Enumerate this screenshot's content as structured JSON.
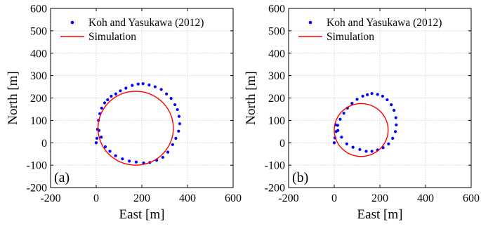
{
  "chart_data": [
    {
      "type": "scatter",
      "panel_label": "(a)",
      "xlabel": "East [m]",
      "ylabel": "North [m]",
      "xlim": [
        -200,
        600
      ],
      "ylim": [
        -200,
        600
      ],
      "xticks": [
        -200,
        0,
        200,
        400,
        600
      ],
      "yticks": [
        -200,
        -100,
        0,
        100,
        200,
        300,
        400,
        500,
        600
      ],
      "grid": true,
      "legend_position": "top-right",
      "series": [
        {
          "name": "Koh and Yasukawa (2012)",
          "kind": "markers",
          "color": "#0000ff",
          "x": [
            0,
            3,
            6,
            10,
            16,
            24,
            37,
            50,
            66,
            86,
            106,
            130,
            158,
            184,
            205,
            232,
            258,
            285,
            308,
            328,
            345,
            356,
            363,
            366,
            361,
            349,
            335,
            314,
            292,
            265,
            235,
            208,
            175,
            145,
            115,
            85,
            60,
            40,
            22,
            12
          ],
          "y": [
            0,
            20,
            60,
            100,
            130,
            155,
            178,
            192,
            208,
            218,
            232,
            244,
            256,
            262,
            264,
            258,
            250,
            238,
            218,
            198,
            170,
            148,
            118,
            85,
            52,
            20,
            -8,
            -42,
            -65,
            -78,
            -88,
            -90,
            -86,
            -82,
            -72,
            -58,
            -38,
            -18,
            25,
            55
          ]
        },
        {
          "name": "Simulation",
          "kind": "line",
          "color": "#ff0000",
          "center": [
            173,
            65
          ],
          "radius": 165
        }
      ]
    },
    {
      "type": "scatter",
      "panel_label": "(b)",
      "xlabel": "East [m]",
      "ylabel": "North [m]",
      "xlim": [
        -200,
        600
      ],
      "ylim": [
        -200,
        600
      ],
      "xticks": [
        -200,
        0,
        200,
        400,
        600
      ],
      "yticks": [
        -200,
        -100,
        0,
        100,
        200,
        300,
        400,
        500,
        600
      ],
      "grid": true,
      "legend_position": "top-right",
      "series": [
        {
          "name": "Koh and Yasukawa (2012)",
          "kind": "markers",
          "color": "#0000ff",
          "x": [
            0,
            3,
            8,
            15,
            26,
            42,
            58,
            78,
            100,
            125,
            145,
            165,
            190,
            212,
            232,
            250,
            262,
            270,
            272,
            268,
            256,
            238,
            214,
            190,
            165,
            140,
            112,
            82,
            55,
            32,
            16,
            6
          ],
          "y": [
            0,
            22,
            50,
            78,
            105,
            132,
            155,
            176,
            194,
            208,
            215,
            220,
            216,
            208,
            192,
            170,
            145,
            112,
            80,
            50,
            20,
            -5,
            -22,
            -32,
            -38,
            -38,
            -30,
            -20,
            -5,
            25,
            55,
            80
          ]
        },
        {
          "name": "Simulation",
          "kind": "line",
          "color": "#ff0000",
          "center": [
            118,
            57
          ],
          "radius": 118
        }
      ]
    }
  ]
}
